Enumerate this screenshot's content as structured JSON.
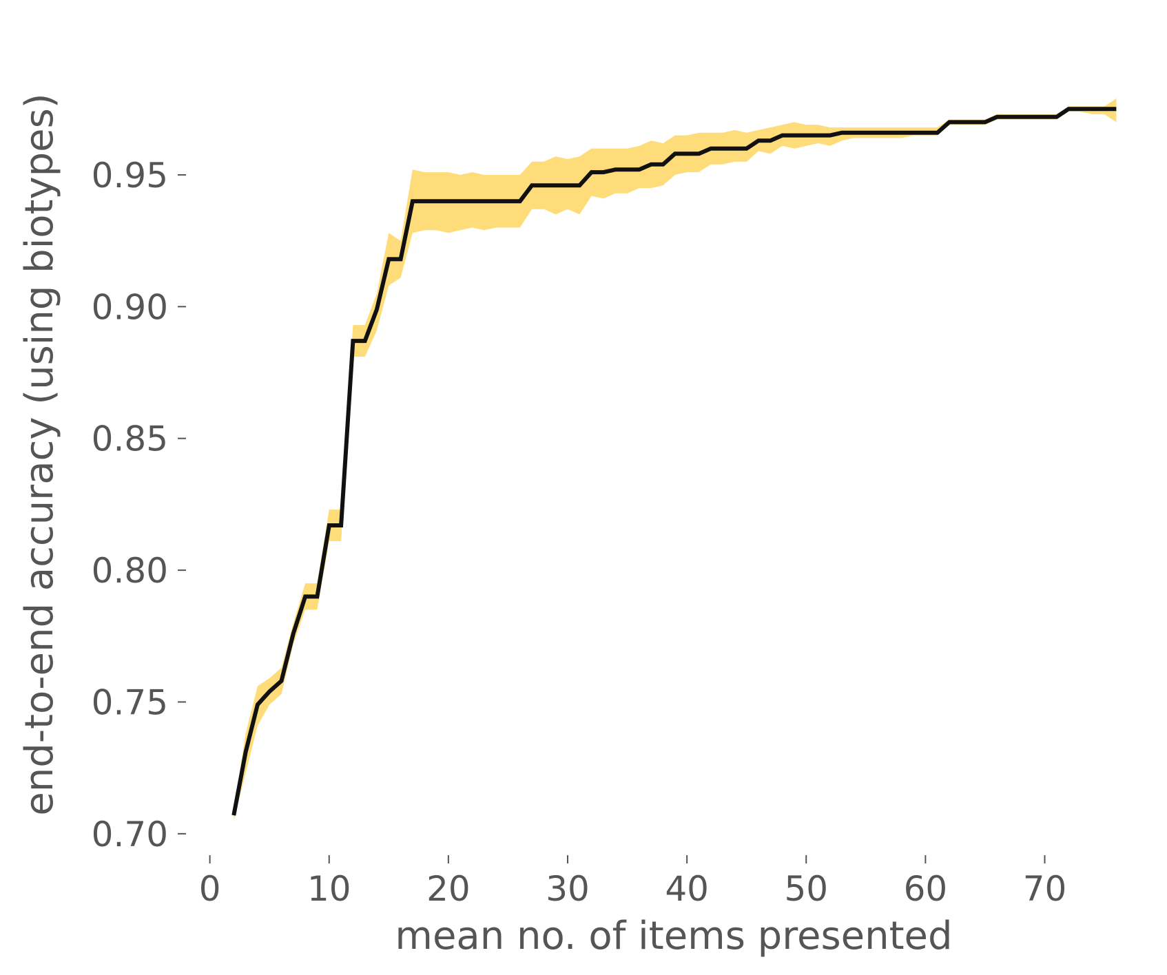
{
  "chart_data": {
    "type": "line",
    "title": "",
    "xlabel": "mean no. of items presented",
    "ylabel": "end-to-end accuracy (using biotypes)",
    "xlim": [
      -2,
      78
    ],
    "ylim": [
      0.695,
      0.985
    ],
    "x_ticks": [
      0,
      10,
      20,
      30,
      40,
      50,
      60,
      70
    ],
    "x_tick_labels": [
      "0",
      "10",
      "20",
      "30",
      "40",
      "50",
      "60",
      "70"
    ],
    "y_ticks": [
      0.7,
      0.75,
      0.8,
      0.85,
      0.9,
      0.95
    ],
    "y_tick_labels": [
      "0.70",
      "0.75",
      "0.80",
      "0.85",
      "0.90",
      "0.95"
    ],
    "grid": false,
    "colors": {
      "line": "#111111",
      "band": "#fddc79",
      "text": "#555555"
    },
    "series": [
      {
        "x": [
          2,
          3,
          4,
          5,
          6,
          7,
          8,
          9,
          10,
          11,
          12,
          13,
          14,
          15,
          16,
          17,
          18,
          19,
          20,
          21,
          22,
          23,
          24,
          25,
          26,
          27,
          28,
          29,
          30,
          31,
          32,
          33,
          34,
          35,
          36,
          37,
          38,
          39,
          40,
          41,
          42,
          43,
          44,
          45,
          46,
          47,
          48,
          49,
          50,
          51,
          52,
          53,
          54,
          55,
          56,
          57,
          58,
          59,
          60,
          61,
          62,
          63,
          64,
          65,
          66,
          67,
          68,
          69,
          70,
          71,
          72,
          73,
          74,
          75,
          76
        ],
        "y": [
          0.707,
          0.731,
          0.749,
          0.754,
          0.758,
          0.776,
          0.79,
          0.79,
          0.817,
          0.817,
          0.887,
          0.887,
          0.899,
          0.918,
          0.918,
          0.94,
          0.94,
          0.94,
          0.94,
          0.94,
          0.94,
          0.94,
          0.94,
          0.94,
          0.94,
          0.946,
          0.946,
          0.946,
          0.946,
          0.946,
          0.951,
          0.951,
          0.952,
          0.952,
          0.952,
          0.954,
          0.954,
          0.958,
          0.958,
          0.958,
          0.96,
          0.96,
          0.96,
          0.96,
          0.963,
          0.963,
          0.965,
          0.965,
          0.965,
          0.965,
          0.965,
          0.966,
          0.966,
          0.966,
          0.966,
          0.966,
          0.966,
          0.966,
          0.966,
          0.966,
          0.97,
          0.97,
          0.97,
          0.97,
          0.972,
          0.972,
          0.972,
          0.972,
          0.972,
          0.972,
          0.975,
          0.975,
          0.975,
          0.975,
          0.975
        ],
        "lower": [
          0.705,
          0.723,
          0.741,
          0.749,
          0.753,
          0.772,
          0.785,
          0.785,
          0.811,
          0.811,
          0.881,
          0.881,
          0.891,
          0.908,
          0.911,
          0.928,
          0.929,
          0.929,
          0.928,
          0.929,
          0.93,
          0.929,
          0.93,
          0.93,
          0.93,
          0.937,
          0.937,
          0.935,
          0.937,
          0.935,
          0.942,
          0.941,
          0.943,
          0.943,
          0.945,
          0.945,
          0.946,
          0.95,
          0.951,
          0.951,
          0.954,
          0.954,
          0.955,
          0.955,
          0.959,
          0.958,
          0.961,
          0.96,
          0.961,
          0.962,
          0.961,
          0.963,
          0.964,
          0.964,
          0.964,
          0.964,
          0.964,
          0.965,
          0.965,
          0.965,
          0.969,
          0.969,
          0.969,
          0.969,
          0.971,
          0.971,
          0.971,
          0.971,
          0.971,
          0.971,
          0.974,
          0.974,
          0.973,
          0.973,
          0.97
        ],
        "upper": [
          0.709,
          0.738,
          0.756,
          0.759,
          0.763,
          0.78,
          0.795,
          0.795,
          0.823,
          0.823,
          0.893,
          0.893,
          0.905,
          0.928,
          0.925,
          0.952,
          0.951,
          0.951,
          0.951,
          0.95,
          0.951,
          0.95,
          0.95,
          0.95,
          0.95,
          0.955,
          0.955,
          0.957,
          0.956,
          0.957,
          0.96,
          0.96,
          0.96,
          0.96,
          0.961,
          0.963,
          0.962,
          0.965,
          0.965,
          0.966,
          0.966,
          0.966,
          0.967,
          0.966,
          0.967,
          0.968,
          0.969,
          0.97,
          0.969,
          0.969,
          0.968,
          0.968,
          0.968,
          0.968,
          0.968,
          0.968,
          0.968,
          0.968,
          0.968,
          0.968,
          0.971,
          0.971,
          0.971,
          0.971,
          0.973,
          0.973,
          0.973,
          0.973,
          0.973,
          0.973,
          0.976,
          0.976,
          0.976,
          0.976,
          0.979
        ]
      }
    ]
  }
}
